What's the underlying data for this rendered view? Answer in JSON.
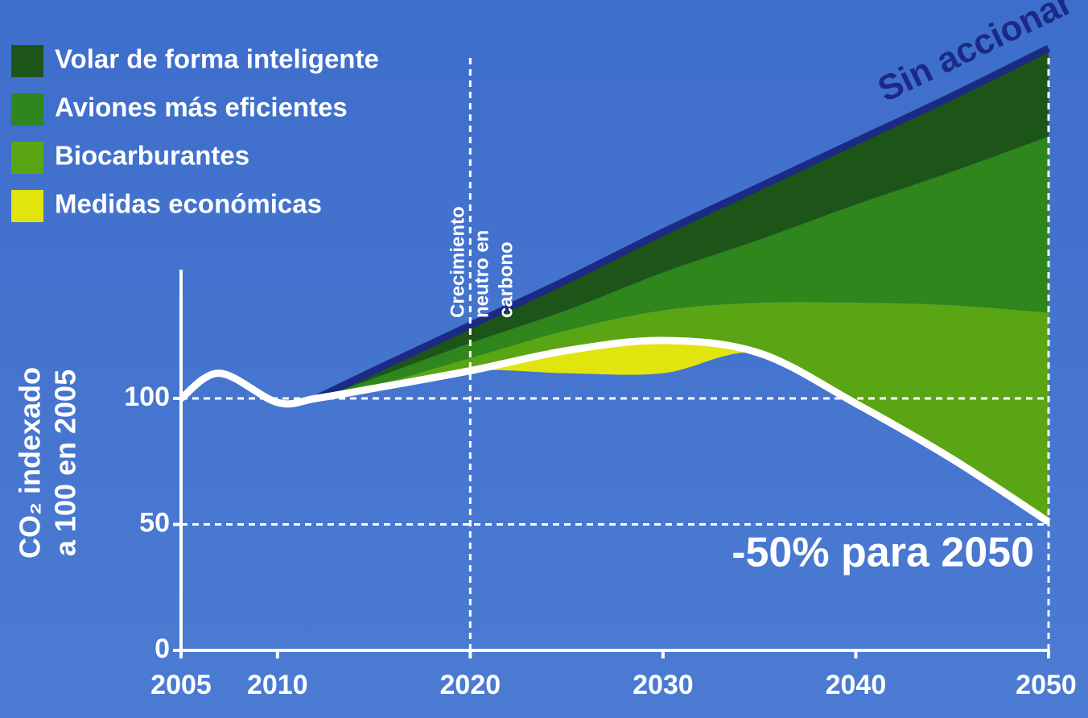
{
  "chart_data": {
    "type": "area",
    "x": [
      2005,
      2007,
      2010,
      2012,
      2015,
      2020,
      2025,
      2030,
      2035,
      2040,
      2045,
      2050
    ],
    "xlim": [
      2005,
      2050
    ],
    "xticks": [
      2005,
      2010,
      2020,
      2030,
      2040,
      2050
    ],
    "ylim": [
      0,
      250
    ],
    "yticks": [
      0,
      50,
      100
    ],
    "vlines": [
      2020,
      2050
    ],
    "line": {
      "color": "#ffffff",
      "values": [
        100,
        110,
        98.4,
        100,
        104,
        111,
        119,
        123,
        118,
        98,
        76,
        51
      ]
    },
    "series": [
      {
        "name": "Volar de forma inteligente",
        "color": "#1d5418",
        "values": [
          0,
          0,
          0,
          0,
          3,
          7,
          12,
          16,
          21,
          25,
          30,
          35
        ]
      },
      {
        "name": "Aviones más eficientes",
        "color": "#2e861c",
        "values": [
          0,
          0,
          0,
          0,
          3,
          6,
          8,
          15,
          25,
          39,
          53,
          70
        ]
      },
      {
        "name": "Biocarburantes",
        "color": "#5aa514",
        "values": [
          0,
          0,
          0,
          0,
          1,
          5,
          8,
          12,
          20,
          40,
          61,
          83
        ]
      },
      {
        "name": "Medidas económicas",
        "color": "#e2e40e",
        "below": true,
        "values": [
          0,
          0,
          0,
          0,
          0,
          0,
          9,
          13,
          0,
          0,
          0,
          0
        ]
      }
    ],
    "stack_order": [
      2,
      1,
      0
    ],
    "ylabel": [
      "CO₂ indexado",
      "a 100 en 2005"
    ],
    "annotations": {
      "no_action": "Sin accionar",
      "neutral": [
        "Crecimiento",
        "neutro en",
        "carbono"
      ],
      "target": "-50% para 2050"
    }
  }
}
